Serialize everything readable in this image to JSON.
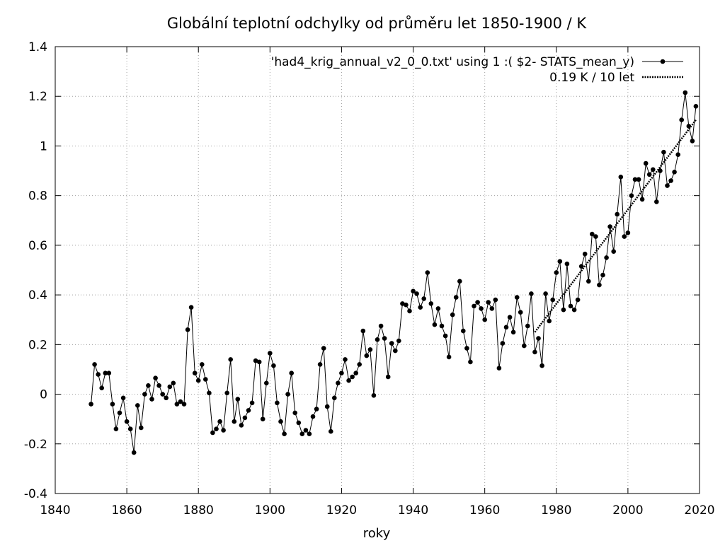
{
  "chart_data": {
    "type": "line",
    "title": "Globální teplotní odchylky od průměru let 1850-1900 / K",
    "xlabel": "roky",
    "ylabel": "",
    "xlim": [
      1840,
      2020
    ],
    "ylim": [
      -0.4,
      1.4
    ],
    "xticks": [
      1840,
      1860,
      1880,
      1900,
      1920,
      1940,
      1960,
      1980,
      2000,
      2020
    ],
    "yticks": [
      -0.4,
      -0.2,
      0,
      0.2,
      0.4,
      0.6,
      0.8,
      1,
      1.2,
      1.4
    ],
    "grid": true,
    "legend_position": "top-right",
    "series": [
      {
        "name": "'had4_krig_annual_v2_0_0.txt' using 1 :( $2- STATS_mean_y)",
        "style": "linespoints",
        "color": "#000000",
        "x": [
          1850,
          1851,
          1852,
          1853,
          1854,
          1855,
          1856,
          1857,
          1858,
          1859,
          1860,
          1861,
          1862,
          1863,
          1864,
          1865,
          1866,
          1867,
          1868,
          1869,
          1870,
          1871,
          1872,
          1873,
          1874,
          1875,
          1876,
          1877,
          1878,
          1879,
          1880,
          1881,
          1882,
          1883,
          1884,
          1885,
          1886,
          1887,
          1888,
          1889,
          1890,
          1891,
          1892,
          1893,
          1894,
          1895,
          1896,
          1897,
          1898,
          1899,
          1900,
          1901,
          1902,
          1903,
          1904,
          1905,
          1906,
          1907,
          1908,
          1909,
          1910,
          1911,
          1912,
          1913,
          1914,
          1915,
          1916,
          1917,
          1918,
          1919,
          1920,
          1921,
          1922,
          1923,
          1924,
          1925,
          1926,
          1927,
          1928,
          1929,
          1930,
          1931,
          1932,
          1933,
          1934,
          1935,
          1936,
          1937,
          1938,
          1939,
          1940,
          1941,
          1942,
          1943,
          1944,
          1945,
          1946,
          1947,
          1948,
          1949,
          1950,
          1951,
          1952,
          1953,
          1954,
          1955,
          1956,
          1957,
          1958,
          1959,
          1960,
          1961,
          1962,
          1963,
          1964,
          1965,
          1966,
          1967,
          1968,
          1969,
          1970,
          1971,
          1972,
          1973,
          1974,
          1975,
          1976,
          1977,
          1978,
          1979,
          1980,
          1981,
          1982,
          1983,
          1984,
          1985,
          1986,
          1987,
          1988,
          1989,
          1990,
          1991,
          1992,
          1993,
          1994,
          1995,
          1996,
          1997,
          1998,
          1999,
          2000,
          2001,
          2002,
          2003,
          2004,
          2005,
          2006,
          2007,
          2008,
          2009,
          2010,
          2011,
          2012,
          2013,
          2014,
          2015,
          2016,
          2017,
          2018,
          2019
        ],
        "y": [
          -0.04,
          0.12,
          0.08,
          0.025,
          0.085,
          0.085,
          -0.04,
          -0.14,
          -0.075,
          -0.015,
          -0.11,
          -0.14,
          -0.235,
          -0.045,
          -0.135,
          0.0,
          0.035,
          -0.02,
          0.065,
          0.035,
          0.0,
          -0.015,
          0.03,
          0.045,
          -0.04,
          -0.03,
          -0.04,
          0.26,
          0.35,
          0.085,
          0.055,
          0.12,
          0.06,
          0.005,
          -0.155,
          -0.14,
          -0.11,
          -0.145,
          0.005,
          0.14,
          -0.11,
          -0.02,
          -0.125,
          -0.095,
          -0.065,
          -0.035,
          0.135,
          0.13,
          -0.1,
          0.045,
          0.165,
          0.115,
          -0.035,
          -0.11,
          -0.16,
          0.0,
          0.085,
          -0.075,
          -0.115,
          -0.16,
          -0.145,
          -0.16,
          -0.09,
          -0.06,
          0.12,
          0.185,
          -0.05,
          -0.15,
          -0.015,
          0.045,
          0.085,
          0.14,
          0.055,
          0.07,
          0.085,
          0.12,
          0.255,
          0.155,
          0.18,
          -0.005,
          0.22,
          0.275,
          0.225,
          0.07,
          0.205,
          0.175,
          0.215,
          0.365,
          0.36,
          0.335,
          0.415,
          0.405,
          0.35,
          0.385,
          0.49,
          0.365,
          0.28,
          0.345,
          0.275,
          0.235,
          0.15,
          0.32,
          0.39,
          0.455,
          0.255,
          0.185,
          0.13,
          0.355,
          0.37,
          0.345,
          0.3,
          0.37,
          0.345,
          0.38,
          0.105,
          0.205,
          0.27,
          0.31,
          0.25,
          0.39,
          0.33,
          0.195,
          0.275,
          0.405,
          0.17,
          0.225,
          0.115,
          0.405,
          0.295,
          0.38,
          0.49,
          0.535,
          0.34,
          0.525,
          0.355,
          0.34,
          0.38,
          0.515,
          0.565,
          0.455,
          0.645,
          0.635,
          0.44,
          0.48,
          0.55,
          0.675,
          0.575,
          0.725,
          0.875,
          0.635,
          0.65,
          0.8,
          0.865,
          0.865,
          0.785,
          0.93,
          0.885,
          0.905,
          0.775,
          0.9,
          0.975,
          0.84,
          0.86,
          0.895,
          0.965,
          1.105,
          1.215,
          1.08,
          1.02,
          1.16
        ]
      },
      {
        "name": "0.19 K / 10 let",
        "style": "dotted-line",
        "color": "#000000",
        "x": [
          1974,
          2019
        ],
        "y": [
          0.25,
          1.105
        ]
      }
    ]
  }
}
